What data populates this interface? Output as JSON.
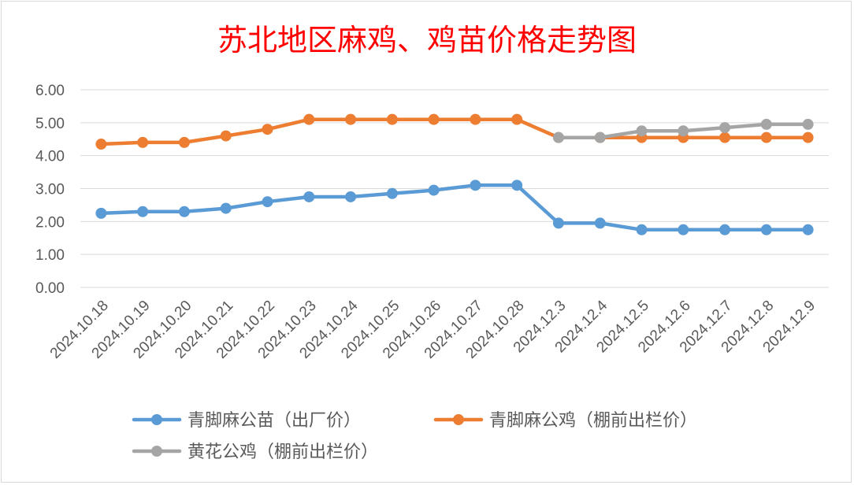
{
  "chart_data": {
    "type": "line",
    "title": "苏北地区麻鸡、鸡苗价格走势图",
    "categories": [
      "2024.10.18",
      "2024.10.19",
      "2024.10.20",
      "2024.10.21",
      "2024.10.22",
      "2024.10.23",
      "2024.10.24",
      "2024.10.25",
      "2024.10.26",
      "2024.10.27",
      "2024.10.28",
      "2024.12.3",
      "2024.12.4",
      "2024.12.5",
      "2024.12.6",
      "2024.12.7",
      "2024.12.8",
      "2024.12.9"
    ],
    "ylim": [
      0,
      6
    ],
    "yticks": [
      "0.00",
      "1.00",
      "2.00",
      "3.00",
      "4.00",
      "5.00",
      "6.00"
    ],
    "grid": true,
    "legend_position": "bottom",
    "series": [
      {
        "name": "青脚麻公苗（出厂价）",
        "color": "#5b9bd5",
        "values": [
          2.25,
          2.3,
          2.3,
          2.4,
          2.6,
          2.75,
          2.75,
          2.85,
          2.95,
          3.1,
          3.1,
          1.95,
          1.95,
          1.75,
          1.75,
          1.75,
          1.75,
          1.75
        ]
      },
      {
        "name": "青脚麻公鸡（棚前出栏价）",
        "color": "#ed7d31",
        "values": [
          4.35,
          4.4,
          4.4,
          4.6,
          4.8,
          5.1,
          5.1,
          5.1,
          5.1,
          5.1,
          5.1,
          4.55,
          4.55,
          4.55,
          4.55,
          4.55,
          4.55,
          4.55
        ]
      },
      {
        "name": "黄花公鸡（棚前出栏价）",
        "color": "#a5a5a5",
        "values": [
          null,
          null,
          null,
          null,
          null,
          null,
          null,
          null,
          null,
          null,
          null,
          4.55,
          4.55,
          4.75,
          4.75,
          4.85,
          4.95,
          4.95
        ]
      }
    ]
  }
}
